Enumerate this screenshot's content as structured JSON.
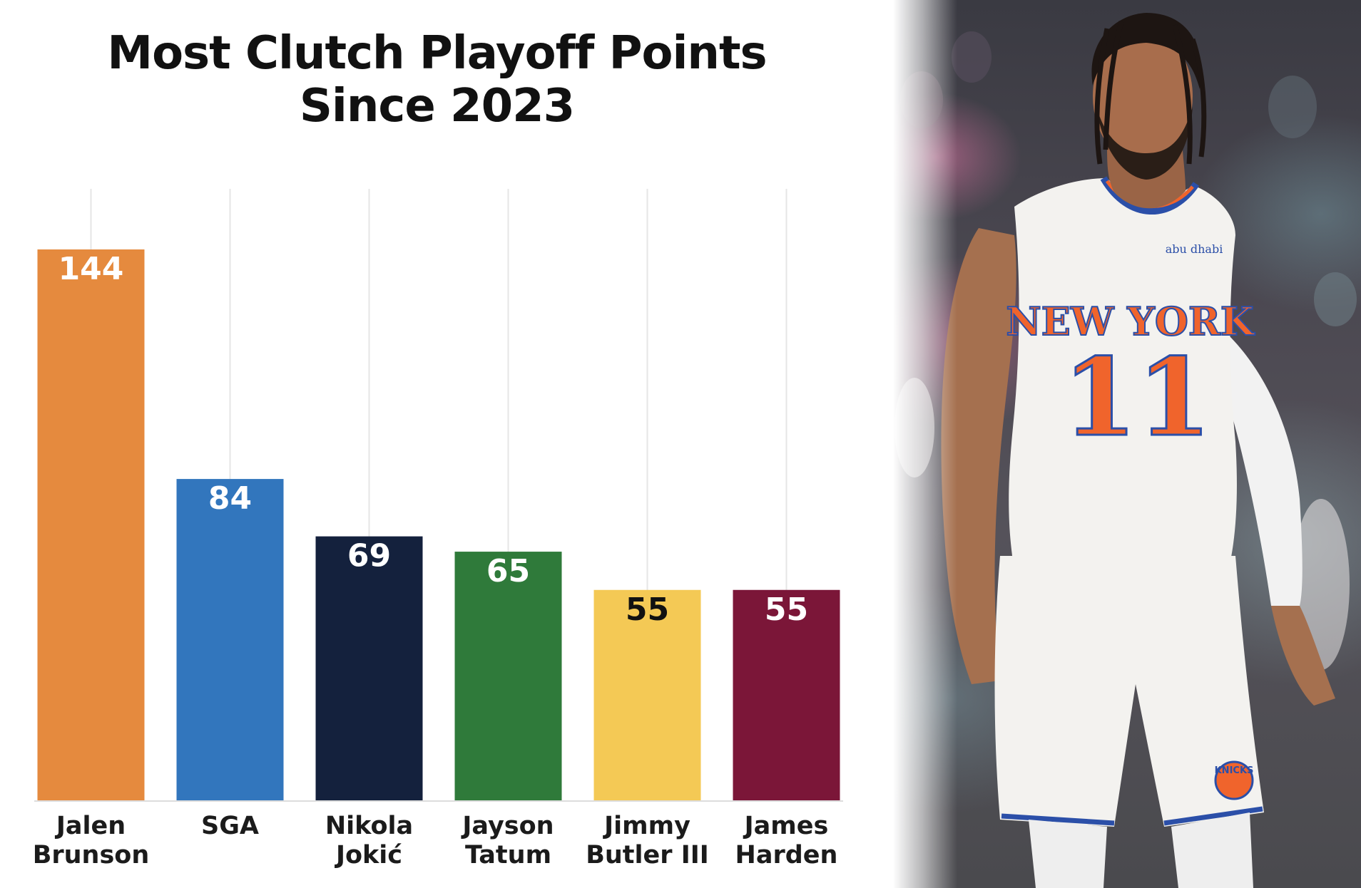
{
  "chart_data": {
    "type": "bar",
    "title": [
      "Most Clutch Playoff Points",
      "Since 2023"
    ],
    "xlabel": "",
    "ylabel": "",
    "grid": true,
    "ylim": [
      0,
      144
    ],
    "categories": [
      [
        "Jalen",
        "Brunson"
      ],
      [
        "SGA"
      ],
      [
        "Nikola",
        "Jokić"
      ],
      [
        "Jayson",
        "Tatum"
      ],
      [
        "Jimmy",
        "Butler III"
      ],
      [
        "James",
        "Harden"
      ]
    ],
    "values": [
      144,
      84,
      69,
      65,
      55,
      55
    ],
    "bar_colors": [
      "#e58a3e",
      "#3276bd",
      "#14213d",
      "#2f7a3a",
      "#f4c955",
      "#7b1638"
    ],
    "value_label_colors": [
      "#ffffff",
      "#ffffff",
      "#ffffff",
      "#ffffff",
      "#111111",
      "#ffffff"
    ],
    "gridline_color": "#e6e6e6",
    "baseline_color": "#dddddd"
  },
  "photo": {
    "description_icon": "basketball-player-photo",
    "jersey_wordmark": "NEW YORK",
    "jersey_number": "11",
    "jersey_sponsor": "abu dhabi",
    "shorts_logo": "KNICKS"
  }
}
